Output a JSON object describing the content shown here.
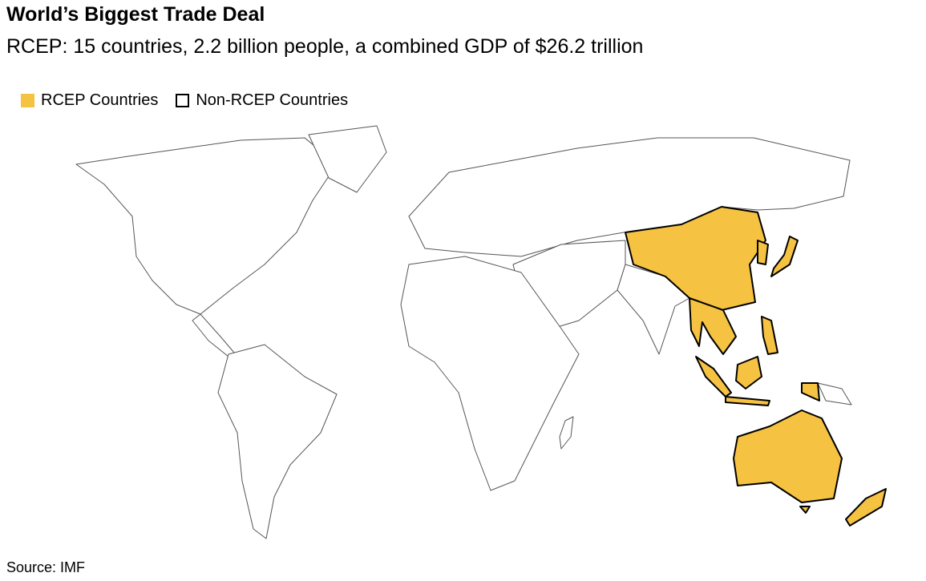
{
  "header": {
    "title": "World’s Biggest Trade Deal",
    "subtitle": "RCEP: 15 countries, 2.2 billion people, a combined GDP of $26.2 trillion"
  },
  "legend": {
    "items": [
      {
        "label": "RCEP Countries"
      },
      {
        "label": "Non-RCEP Countries"
      }
    ]
  },
  "footer": {
    "source": "Source: IMF"
  }
}
